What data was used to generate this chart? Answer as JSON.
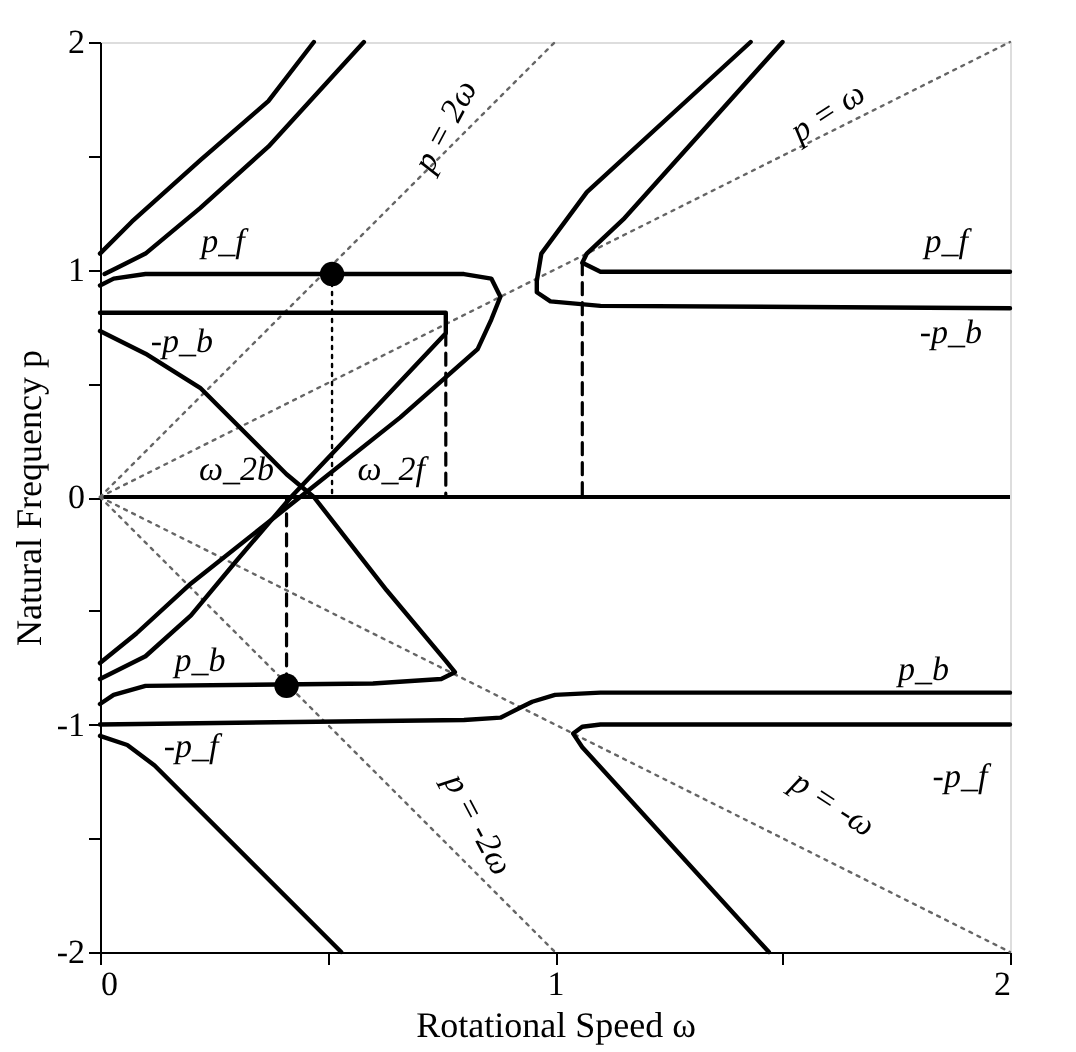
{
  "chart_data": {
    "type": "line",
    "xlabel": "Rotational Speed  ω",
    "ylabel": "Natural Frequency  p",
    "xlim": [
      0,
      2
    ],
    "ylim": [
      -2,
      2
    ],
    "xticks": [
      0,
      {
        "value": 0.5,
        "label": null
      },
      1,
      {
        "value": 1.5,
        "label": null
      },
      2
    ],
    "yticks": [
      -2,
      {
        "value": -1.5,
        "label": null
      },
      -1,
      {
        "value": -0.5,
        "label": null
      },
      0,
      {
        "value": 0.5,
        "label": null
      },
      1,
      {
        "value": 1.5,
        "label": null
      },
      2
    ],
    "grid": false,
    "marker": "none",
    "ref_lines": [
      {
        "axis": "y",
        "value": 0,
        "color": "#000000",
        "line_style": "solid"
      }
    ],
    "series": [
      {
        "color": "#666666",
        "line_style": "dotted",
        "x": [
          0,
          2
        ],
        "values": [
          0,
          2
        ]
      },
      {
        "color": "#666666",
        "line_style": "dotted",
        "x": [
          0,
          1
        ],
        "values": [
          0,
          2
        ]
      },
      {
        "color": "#666666",
        "line_style": "dotted",
        "x": [
          0,
          2
        ],
        "values": [
          0,
          -2
        ]
      },
      {
        "color": "#666666",
        "line_style": "dotted",
        "x": [
          0,
          1
        ],
        "values": [
          0,
          -2
        ]
      },
      {
        "color": "#000000",
        "line_style": "solid",
        "x": [
          0,
          0.07,
          0.22,
          0.37,
          0.47
        ],
        "values": [
          1.07,
          1.21,
          1.48,
          1.74,
          2
        ]
      },
      {
        "color": "#000000",
        "line_style": "solid",
        "x": [
          0.58,
          0.37,
          0.22,
          0.1,
          0.04,
          0.01
        ],
        "values": [
          2,
          1.54,
          1.27,
          1.07,
          1.01,
          0.98
        ]
      },
      {
        "color": "#000000",
        "line_style": "solid",
        "x": [
          0,
          0.03,
          0.1,
          0.8,
          0.86,
          0.88,
          0.86,
          0.83,
          0.66,
          0.44,
          0.2,
          0.08,
          0
        ],
        "values": [
          0.93,
          0.96,
          0.98,
          0.98,
          0.96,
          0.88,
          0.78,
          0.65,
          0.35,
          0,
          -0.38,
          -0.6,
          -0.73
        ]
      },
      {
        "color": "#000000",
        "line_style": "solid",
        "x": [
          0,
          0.76,
          0.76,
          0.6,
          0.42,
          0.3,
          0.2,
          0.1,
          0
        ],
        "values": [
          0.81,
          0.81,
          0.72,
          0.38,
          0,
          -0.28,
          -0.52,
          -0.7,
          -0.8
        ]
      },
      {
        "color": "#000000",
        "line_style": "solid",
        "x": [
          0,
          0.1,
          0.22,
          0.41,
          0.47,
          0.63,
          0.76,
          0.78,
          0.75,
          0.6,
          0.1,
          0.03,
          0
        ],
        "values": [
          0.73,
          0.63,
          0.48,
          0.1,
          0,
          -0.41,
          -0.72,
          -0.77,
          -0.8,
          -0.82,
          -0.83,
          -0.87,
          -0.91
        ]
      },
      {
        "color": "#000000",
        "line_style": "solid",
        "x": [
          0,
          0.8,
          0.88,
          0.92,
          0.95,
          1,
          1.1,
          2
        ],
        "values": [
          -1,
          -0.98,
          -0.97,
          -0.93,
          -0.9,
          -0.87,
          -0.86,
          -0.86
        ]
      },
      {
        "color": "#000000",
        "line_style": "solid",
        "x": [
          0,
          0.06,
          0.12,
          0.53
        ],
        "values": [
          -1.05,
          -1.09,
          -1.18,
          -2
        ]
      },
      {
        "color": "#000000",
        "line_style": "solid",
        "x": [
          2,
          1.1,
          1.06,
          1.04,
          1.06,
          1.47
        ],
        "values": [
          -1,
          -1,
          -1.01,
          -1.04,
          -1.1,
          -2
        ]
      },
      {
        "color": "#000000",
        "line_style": "solid",
        "x": [
          2,
          1.1,
          0.99,
          0.96,
          0.96,
          0.97,
          1.07,
          1.43
        ],
        "values": [
          0.83,
          0.84,
          0.86,
          0.9,
          0.95,
          1.07,
          1.34,
          2
        ]
      },
      {
        "color": "#000000",
        "line_style": "solid",
        "x": [
          2,
          1.1,
          1.06,
          1.07,
          1.15,
          1.5
        ],
        "values": [
          0.99,
          0.99,
          1.03,
          1.07,
          1.22,
          2
        ]
      },
      {
        "color": "#000000",
        "line_style": "dotted",
        "x": [
          0.51,
          0.51
        ],
        "values": [
          0.98,
          0
        ]
      },
      {
        "color": "#000000",
        "line_style": "dashed",
        "x": [
          0.41,
          0.41
        ],
        "values": [
          -0.83,
          0
        ]
      },
      {
        "color": "#000000",
        "line_style": "dashed",
        "x": [
          0.76,
          0.76
        ],
        "values": [
          0.72,
          0
        ]
      },
      {
        "color": "#000000",
        "line_style": "dashed",
        "x": [
          1.06,
          1.06
        ],
        "values": [
          1.03,
          0
        ]
      },
      {
        "type": "scatter",
        "marker": "circle",
        "color": "#000000",
        "x": [
          0.51,
          0.41
        ],
        "values": [
          0.98,
          -0.83
        ]
      }
    ],
    "annotations": [
      "p = 2ω",
      "p = ω",
      "p_f",
      "-p_b",
      "p_f",
      "-p_b",
      "ω_2b",
      "ω_2f",
      "p_b",
      "-p_f",
      "p = -2ω",
      "p_b",
      "-p_f",
      "p = -ω"
    ]
  }
}
